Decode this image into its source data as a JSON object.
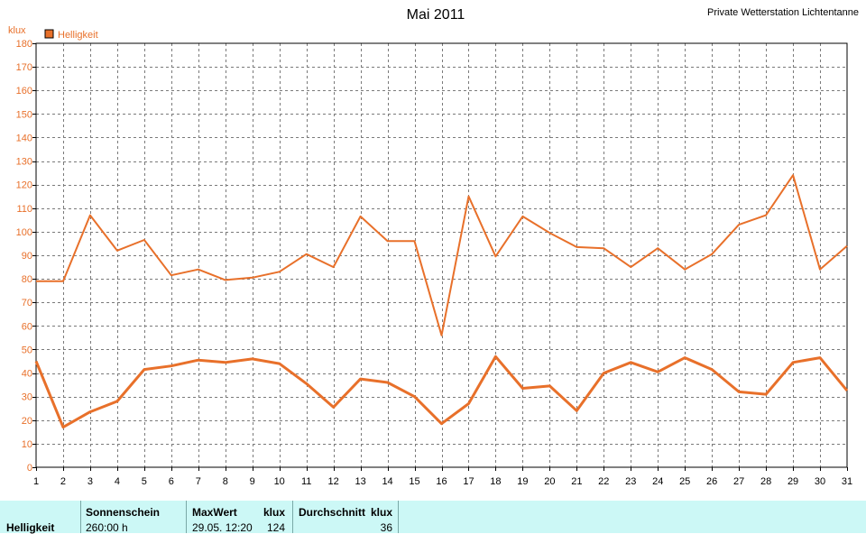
{
  "chart_data": {
    "type": "line",
    "title": "Mai 2011",
    "station": "Private Wetterstation Lichtentanne",
    "ylabel": "klux",
    "legend": {
      "label": "Helligkeit",
      "color": "#e8702a",
      "placement": "top-left"
    },
    "x": [
      1,
      2,
      3,
      4,
      5,
      6,
      7,
      8,
      9,
      10,
      11,
      12,
      13,
      14,
      15,
      16,
      17,
      18,
      19,
      20,
      21,
      22,
      23,
      24,
      25,
      26,
      27,
      28,
      29,
      30,
      31
    ],
    "xlim": [
      1,
      31
    ],
    "ylim": [
      0,
      180
    ],
    "yticks": [
      0,
      10,
      20,
      30,
      40,
      50,
      60,
      70,
      80,
      90,
      100,
      110,
      120,
      130,
      140,
      150,
      160,
      170,
      180
    ],
    "grid": true,
    "series": [
      {
        "values": [
          79,
          79,
          107,
          92,
          96.5,
          81.5,
          84,
          79.5,
          80.5,
          83,
          90.5,
          85,
          106.5,
          96,
          96,
          56,
          115,
          89.5,
          106.5,
          99.5,
          93.5,
          93,
          85,
          93,
          84,
          90.5,
          103,
          107,
          124,
          84,
          94
        ]
      },
      {
        "values": [
          45,
          17,
          23.5,
          28,
          41.5,
          43,
          45.5,
          44.5,
          46,
          44,
          35.5,
          25.5,
          37.5,
          36,
          30,
          18.5,
          27,
          47,
          33.5,
          34.5,
          24,
          40,
          44.5,
          40.5,
          46.5,
          41.5,
          32,
          31,
          44.5,
          46.5,
          32.5
        ]
      }
    ],
    "line_color": "#e8702a"
  },
  "footer": {
    "row_label": "Helligkeit",
    "sun_header": "Sonnenschein",
    "sun_value": "260:00 h",
    "max_header": "MaxWert",
    "max_unit": "klux",
    "max_time": "29.05.  12:20",
    "max_value": "124",
    "avg_header": "Durchschnitt",
    "avg_unit": "klux",
    "avg_value": "36"
  }
}
